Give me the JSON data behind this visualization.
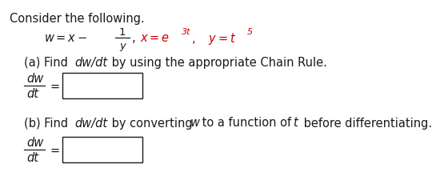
{
  "background_color": "#ffffff",
  "text_color": "#1a1a1a",
  "red_color": "#cc0000",
  "font_size": 10.5,
  "font_size_small": 9.5,
  "font_size_super": 8,
  "title": "Consider the following.",
  "part_a_line": "(a) Find dw/dt by using the appropriate Chain Rule.",
  "part_b_line": "(b) Find dw/dt by converting w to a function of t before differentiating."
}
